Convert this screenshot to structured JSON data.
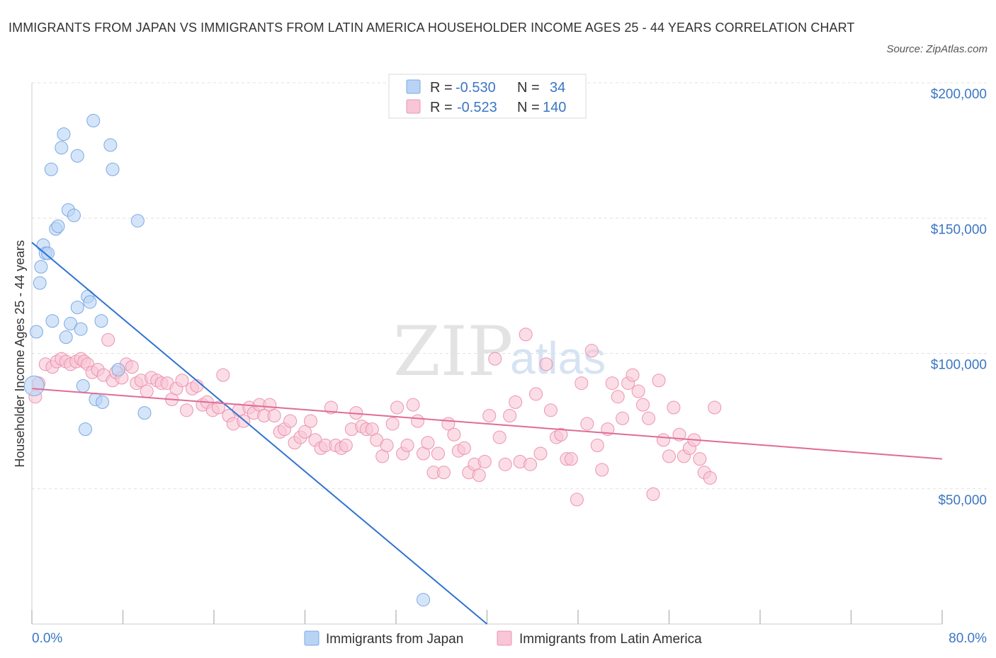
{
  "title": "IMMIGRANTS FROM JAPAN VS IMMIGRANTS FROM LATIN AMERICA HOUSEHOLDER INCOME AGES 25 - 44 YEARS CORRELATION CHART",
  "source": "Source: ZipAtlas.com",
  "watermark": {
    "zip": "ZIP",
    "atlas": "atlas"
  },
  "colors": {
    "japan_fill": "#b9d3f5",
    "japan_stroke": "#7aa9e3",
    "japan_line": "#2f74d0",
    "latin_fill": "#f8c6d6",
    "latin_stroke": "#eb94b1",
    "latin_line": "#e06b97",
    "tick_blue": "#3b76c4",
    "grid": "#e0e0e0"
  },
  "legend": {
    "rows": [
      {
        "r_label": "R = ",
        "r_value": "-0.530",
        "n_label": "N = ",
        "n_value": "34"
      },
      {
        "r_label": "R = ",
        "r_value": "-0.523",
        "n_label": "N = ",
        "n_value": "140"
      }
    ]
  },
  "chart_data": {
    "type": "scatter",
    "title": "IMMIGRANTS FROM JAPAN VS IMMIGRANTS FROM LATIN AMERICA HOUSEHOLDER INCOME AGES 25 - 44 YEARS CORRELATION CHART",
    "xlabel": "",
    "ylabel": "Householder Income Ages 25 - 44 years",
    "xlim": [
      0,
      80
    ],
    "ylim": [
      0,
      200000
    ],
    "x_tick_labels": [
      "0.0%",
      "80.0%"
    ],
    "y_ticks": [
      50000,
      100000,
      150000,
      200000
    ],
    "y_tick_labels": [
      "$50,000",
      "$100,000",
      "$150,000",
      "$200,000"
    ],
    "grid": true,
    "legend_position": "top-center",
    "series": [
      {
        "name": "Immigrants from Japan",
        "r": -0.53,
        "n": 34,
        "trend": {
          "x": [
            0,
            40
          ],
          "y": [
            141000,
            0
          ]
        },
        "points": [
          [
            0.2,
            88000
          ],
          [
            0.4,
            108000
          ],
          [
            0.7,
            126000
          ],
          [
            0.8,
            132000
          ],
          [
            1.0,
            140000
          ],
          [
            1.2,
            137000
          ],
          [
            1.4,
            137000
          ],
          [
            1.7,
            168000
          ],
          [
            1.8,
            112000
          ],
          [
            2.1,
            146000
          ],
          [
            2.3,
            147000
          ],
          [
            2.6,
            176000
          ],
          [
            2.8,
            181000
          ],
          [
            3.0,
            106000
          ],
          [
            3.2,
            153000
          ],
          [
            3.4,
            111000
          ],
          [
            3.7,
            151000
          ],
          [
            4.0,
            173000
          ],
          [
            4.0,
            117000
          ],
          [
            4.3,
            109000
          ],
          [
            4.5,
            88000
          ],
          [
            4.7,
            72000
          ],
          [
            4.9,
            121000
          ],
          [
            5.1,
            119000
          ],
          [
            5.4,
            186000
          ],
          [
            5.6,
            83000
          ],
          [
            6.2,
            82000
          ],
          [
            6.1,
            112000
          ],
          [
            6.9,
            177000
          ],
          [
            7.1,
            168000
          ],
          [
            7.6,
            94000
          ],
          [
            9.3,
            149000
          ],
          [
            9.9,
            78000
          ],
          [
            34.4,
            9000
          ]
        ]
      },
      {
        "name": "Immigrants from Latin America",
        "r": -0.523,
        "n": 140,
        "trend": {
          "x": [
            0,
            80
          ],
          "y": [
            87000,
            61000
          ]
        },
        "points": [
          [
            0.3,
            84000
          ],
          [
            0.6,
            89000
          ],
          [
            1.2,
            96000
          ],
          [
            1.8,
            95000
          ],
          [
            2.2,
            97000
          ],
          [
            2.6,
            98000
          ],
          [
            3.0,
            97000
          ],
          [
            3.4,
            96000
          ],
          [
            3.9,
            97000
          ],
          [
            4.3,
            98000
          ],
          [
            4.6,
            97000
          ],
          [
            4.9,
            96000
          ],
          [
            5.3,
            93000
          ],
          [
            5.8,
            94000
          ],
          [
            6.3,
            92000
          ],
          [
            6.7,
            105000
          ],
          [
            7.1,
            90000
          ],
          [
            7.4,
            93000
          ],
          [
            7.9,
            91000
          ],
          [
            8.3,
            96000
          ],
          [
            8.8,
            95000
          ],
          [
            9.2,
            89000
          ],
          [
            9.6,
            90000
          ],
          [
            10.1,
            86000
          ],
          [
            10.5,
            91000
          ],
          [
            11.0,
            90000
          ],
          [
            11.4,
            89000
          ],
          [
            11.9,
            89000
          ],
          [
            12.3,
            83000
          ],
          [
            12.7,
            87000
          ],
          [
            13.2,
            90000
          ],
          [
            13.6,
            79000
          ],
          [
            14.1,
            87000
          ],
          [
            14.5,
            88000
          ],
          [
            15.0,
            81000
          ],
          [
            15.4,
            82000
          ],
          [
            15.9,
            79000
          ],
          [
            16.4,
            80000
          ],
          [
            16.8,
            92000
          ],
          [
            17.3,
            77000
          ],
          [
            17.7,
            74000
          ],
          [
            18.2,
            79000
          ],
          [
            18.6,
            75000
          ],
          [
            19.1,
            80000
          ],
          [
            19.5,
            78000
          ],
          [
            20.0,
            81000
          ],
          [
            20.4,
            77000
          ],
          [
            20.9,
            81000
          ],
          [
            21.3,
            77000
          ],
          [
            21.8,
            71000
          ],
          [
            22.2,
            72000
          ],
          [
            22.7,
            75000
          ],
          [
            23.1,
            67000
          ],
          [
            23.6,
            69000
          ],
          [
            24.0,
            71000
          ],
          [
            24.5,
            75000
          ],
          [
            24.9,
            68000
          ],
          [
            25.4,
            65000
          ],
          [
            25.8,
            66000
          ],
          [
            26.3,
            80000
          ],
          [
            26.7,
            66000
          ],
          [
            27.2,
            65000
          ],
          [
            27.6,
            66000
          ],
          [
            28.1,
            72000
          ],
          [
            28.5,
            78000
          ],
          [
            29.0,
            73000
          ],
          [
            29.4,
            72000
          ],
          [
            29.9,
            72000
          ],
          [
            30.3,
            68000
          ],
          [
            30.8,
            62000
          ],
          [
            31.2,
            66000
          ],
          [
            31.7,
            74000
          ],
          [
            32.1,
            80000
          ],
          [
            32.6,
            63000
          ],
          [
            33.0,
            66000
          ],
          [
            33.5,
            81000
          ],
          [
            33.9,
            75000
          ],
          [
            34.4,
            63000
          ],
          [
            34.8,
            67000
          ],
          [
            35.3,
            56000
          ],
          [
            35.7,
            63000
          ],
          [
            36.2,
            56000
          ],
          [
            36.6,
            74000
          ],
          [
            37.1,
            70000
          ],
          [
            37.5,
            64000
          ],
          [
            38.0,
            65000
          ],
          [
            38.4,
            56000
          ],
          [
            38.9,
            59000
          ],
          [
            39.3,
            55000
          ],
          [
            39.8,
            60000
          ],
          [
            40.2,
            77000
          ],
          [
            40.7,
            98000
          ],
          [
            41.1,
            69000
          ],
          [
            41.6,
            59000
          ],
          [
            42.0,
            77000
          ],
          [
            42.5,
            82000
          ],
          [
            42.9,
            60000
          ],
          [
            43.4,
            107000
          ],
          [
            43.8,
            59000
          ],
          [
            44.3,
            85000
          ],
          [
            44.7,
            63000
          ],
          [
            45.2,
            96000
          ],
          [
            45.6,
            79000
          ],
          [
            46.1,
            69000
          ],
          [
            46.5,
            70000
          ],
          [
            47.0,
            61000
          ],
          [
            47.4,
            61000
          ],
          [
            47.9,
            46000
          ],
          [
            48.3,
            89000
          ],
          [
            48.8,
            74000
          ],
          [
            49.2,
            101000
          ],
          [
            49.7,
            66000
          ],
          [
            50.1,
            57000
          ],
          [
            50.6,
            72000
          ],
          [
            51.0,
            89000
          ],
          [
            51.5,
            84000
          ],
          [
            51.9,
            76000
          ],
          [
            52.4,
            89000
          ],
          [
            52.8,
            92000
          ],
          [
            53.3,
            86000
          ],
          [
            53.7,
            81000
          ],
          [
            54.2,
            76000
          ],
          [
            54.6,
            48000
          ],
          [
            55.1,
            90000
          ],
          [
            55.5,
            68000
          ],
          [
            56.0,
            62000
          ],
          [
            56.4,
            80000
          ],
          [
            56.9,
            70000
          ],
          [
            57.3,
            62000
          ],
          [
            57.8,
            65000
          ],
          [
            58.2,
            68000
          ],
          [
            58.7,
            61000
          ],
          [
            59.1,
            56000
          ],
          [
            59.6,
            54000
          ],
          [
            60.0,
            80000
          ]
        ]
      }
    ]
  },
  "bottom_legend": [
    {
      "label": "Immigrants from Japan"
    },
    {
      "label": "Immigrants from Latin America"
    }
  ]
}
